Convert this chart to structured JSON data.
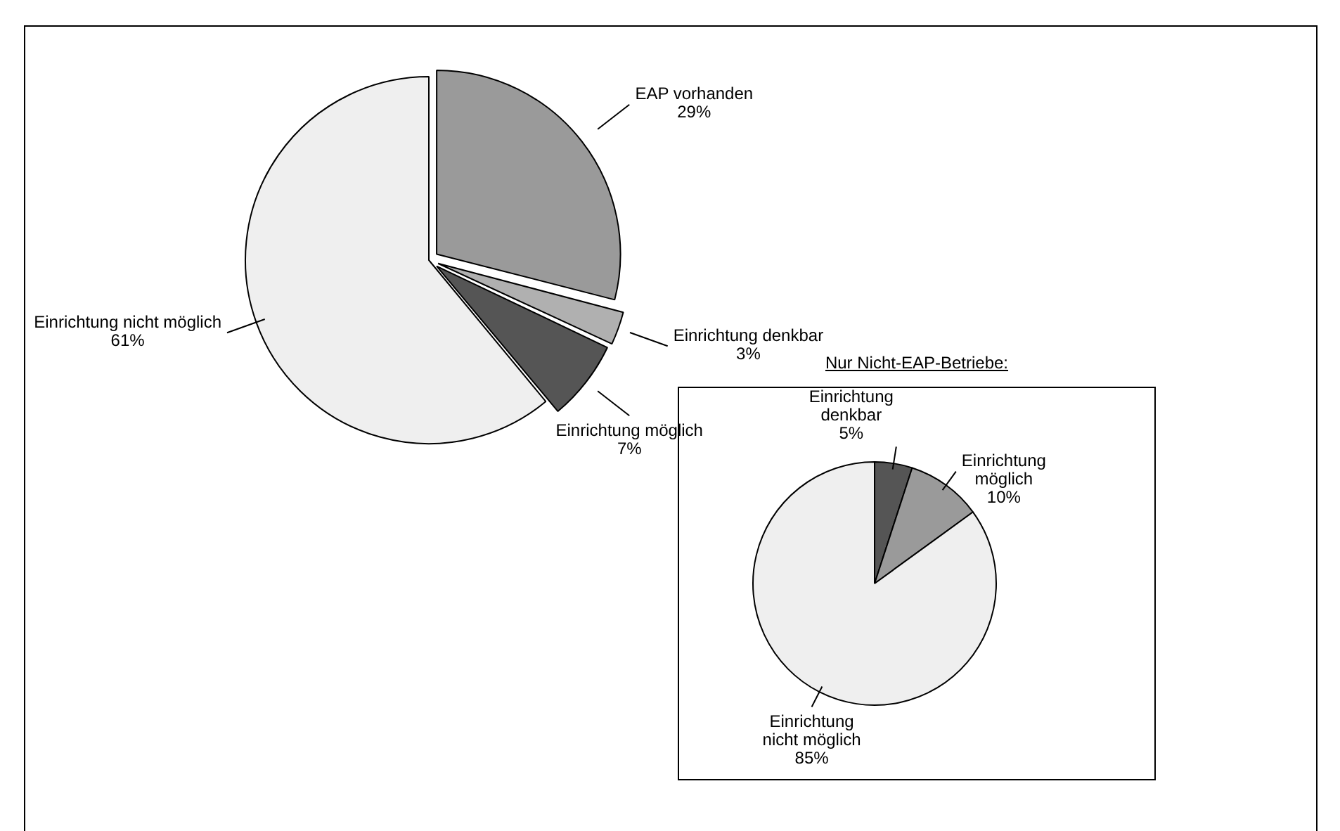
{
  "chart_data": [
    {
      "type": "pie",
      "categories": [
        "EAP vorhanden",
        "Einrichtung denkbar",
        "Einrichtung möglich",
        "Einrichtung nicht möglich"
      ],
      "values": [
        29,
        3,
        7,
        61
      ],
      "value_labels": [
        "29%",
        "3%",
        "7%",
        "61%"
      ],
      "colors": [
        "#9a9a9a",
        "#b0b0b0",
        "#555555",
        "#efefef"
      ]
    },
    {
      "type": "pie",
      "title": "Nur Nicht-EAP-Betriebe:",
      "categories": [
        "Einrichtung denkbar",
        "Einrichtung möglich",
        "Einrichtung nicht möglich"
      ],
      "values": [
        5,
        10,
        85
      ],
      "value_labels": [
        "5%",
        "10%",
        "85%"
      ],
      "colors": [
        "#555555",
        "#9a9a9a",
        "#efefef"
      ]
    }
  ]
}
